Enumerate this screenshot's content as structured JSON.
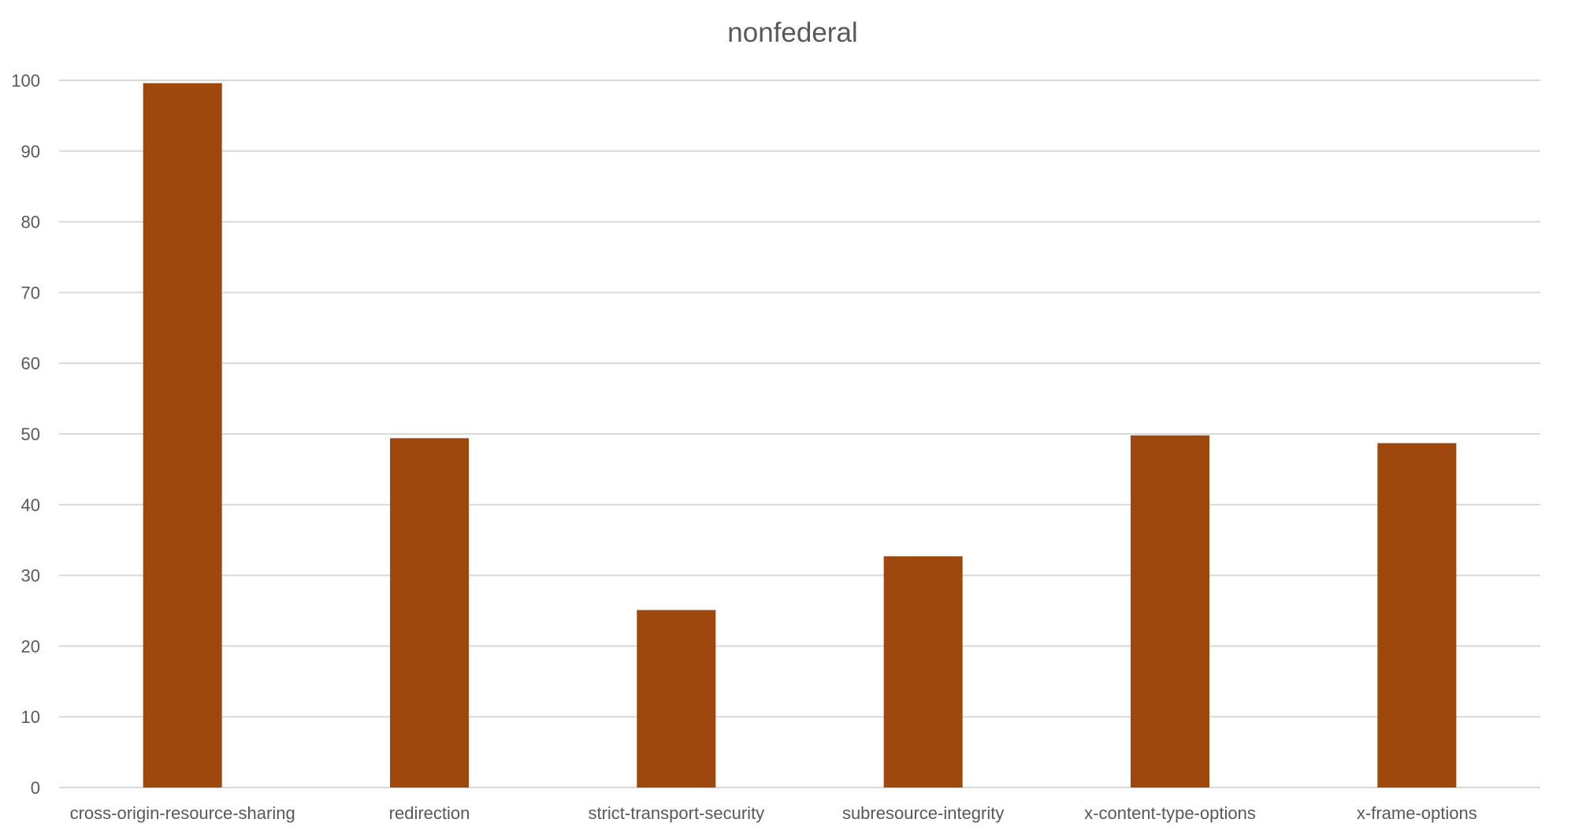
{
  "chart_data": {
    "type": "bar",
    "title": "nonfederal",
    "xlabel": "",
    "ylabel": "",
    "categories": [
      "cross-origin-resource-sharing",
      "redirection",
      "strict-transport-security",
      "subresource-integrity",
      "x-content-type-options",
      "x-frame-options"
    ],
    "series": [
      {
        "values": [
          99.6,
          49.4,
          25.1,
          32.7,
          49.8,
          48.7
        ],
        "color": "#9e480e"
      }
    ],
    "ylim": [
      0,
      100
    ],
    "yticks": [
      "0",
      "10",
      "20",
      "30",
      "40",
      "50",
      "60",
      "70",
      "80",
      "90",
      "100"
    ],
    "grid": true,
    "legend": "none"
  }
}
